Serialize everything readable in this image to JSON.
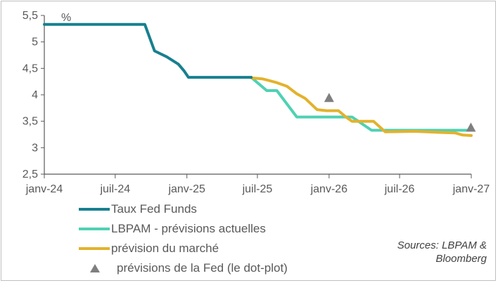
{
  "chart_data": {
    "type": "line",
    "unit_label": "%",
    "y_ticks": [
      "2,5",
      "3",
      "3,5",
      "4",
      "4,5",
      "5",
      "5,5"
    ],
    "ylim": [
      2.5,
      5.5
    ],
    "x_ticks": [
      {
        "label": "janv-24",
        "date": "2024-01-01"
      },
      {
        "label": "juil-24",
        "date": "2024-07-01"
      },
      {
        "label": "janv-25",
        "date": "2025-01-01"
      },
      {
        "label": "juil-25",
        "date": "2025-07-01"
      },
      {
        "label": "janv-26",
        "date": "2026-01-01"
      },
      {
        "label": "juil-26",
        "date": "2026-07-01"
      },
      {
        "label": "janv-27",
        "date": "2027-01-01"
      }
    ],
    "xlim": [
      "2024-01-01",
      "2027-01-01"
    ],
    "series": [
      {
        "name": "Taux Fed Funds",
        "color": "#17808f",
        "points": [
          [
            "2024-01-01",
            5.33
          ],
          [
            "2024-09-15",
            5.33
          ],
          [
            "2024-10-10",
            4.83
          ],
          [
            "2024-11-10",
            4.72
          ],
          [
            "2024-12-10",
            4.58
          ],
          [
            "2024-12-25",
            4.45
          ],
          [
            "2025-01-05",
            4.33
          ],
          [
            "2025-06-15",
            4.33
          ]
        ]
      },
      {
        "name": "LBPAM - prévisions actuelles",
        "color": "#4fd1b3",
        "points": [
          [
            "2025-06-15",
            4.33
          ],
          [
            "2025-07-25",
            4.08
          ],
          [
            "2025-08-20",
            4.08
          ],
          [
            "2025-10-10",
            3.58
          ],
          [
            "2026-03-01",
            3.58
          ],
          [
            "2026-04-20",
            3.33
          ],
          [
            "2027-01-01",
            3.33
          ]
        ]
      },
      {
        "name": "prévision du marché",
        "color": "#e3b22c",
        "points": [
          [
            "2025-06-15",
            4.32
          ],
          [
            "2025-07-15",
            4.3
          ],
          [
            "2025-08-20",
            4.23
          ],
          [
            "2025-09-15",
            4.16
          ],
          [
            "2025-10-10",
            4.02
          ],
          [
            "2025-11-01",
            3.93
          ],
          [
            "2025-12-01",
            3.72
          ],
          [
            "2025-12-25",
            3.7
          ],
          [
            "2026-01-25",
            3.7
          ],
          [
            "2026-02-15",
            3.57
          ],
          [
            "2026-03-01",
            3.5
          ],
          [
            "2026-04-25",
            3.5
          ],
          [
            "2026-05-25",
            3.3
          ],
          [
            "2026-08-10",
            3.31
          ],
          [
            "2026-10-10",
            3.29
          ],
          [
            "2026-11-20",
            3.28
          ],
          [
            "2026-12-10",
            3.24
          ],
          [
            "2027-01-01",
            3.23
          ]
        ]
      }
    ],
    "markers": {
      "name": "prévisions de la Fed (le dot-plot)",
      "color": "#7f7f7f",
      "points": [
        [
          "2026-01-01",
          3.93
        ],
        [
          "2026-12-31",
          3.37
        ]
      ]
    },
    "sources": [
      "Sources: LBPAM &",
      "Bloomberg"
    ],
    "grid": false,
    "legend_position": "bottom-left"
  }
}
